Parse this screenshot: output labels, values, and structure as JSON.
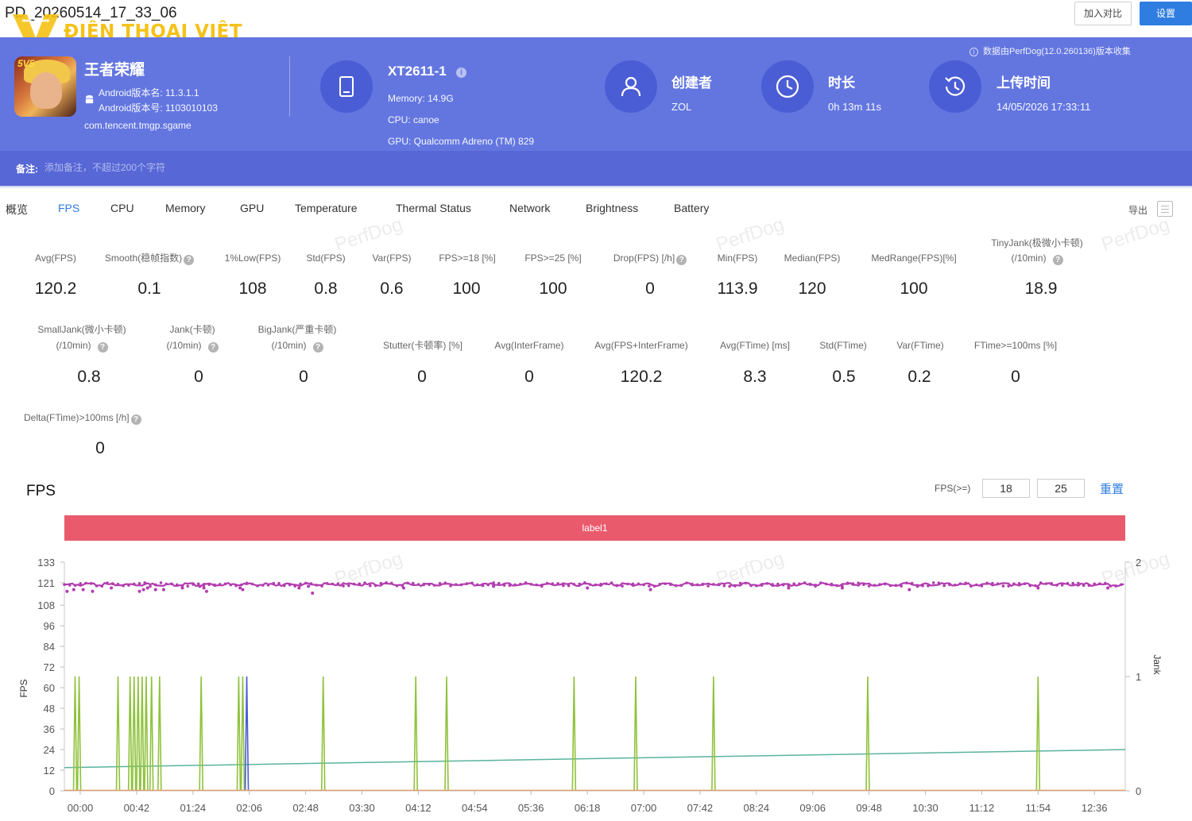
{
  "window": {
    "file_title": "PD_20260514_17_33_06",
    "watermark_text": "ĐIỆN THOẠI VIỆT",
    "compare_button": "加入对比",
    "settings_button": "设置"
  },
  "header": {
    "app_name": "王者荣耀",
    "android_version": "Android版本名: 11.3.1.1",
    "android_build": "Android版本号: 1103010103",
    "package": "com.tencent.tmgp.sgame",
    "device_name": "XT2611-1",
    "memory": "Memory: 14.9G",
    "cpu": "CPU: canoe",
    "gpu": "GPU: Qualcomm Adreno (TM) 829",
    "creator_label": "创建者",
    "creator_value": "ZOL",
    "duration_label": "时长",
    "duration_value": "0h 13m 11s",
    "upload_label": "上传时间",
    "upload_value": "14/05/2026 17:33:11",
    "collected_note": "数据由PerfDog(12.0.260136)版本收集",
    "remark_label": "备注:",
    "remark_placeholder": "添加备注，不超过200个字符",
    "bg_color": "#6376e0",
    "remark_bg_color": "#5767d6"
  },
  "tabs": {
    "items": [
      "概览",
      "FPS",
      "CPU",
      "Memory",
      "GPU",
      "Temperature",
      "Thermal Status",
      "Network",
      "Brightness",
      "Battery"
    ],
    "active": "FPS",
    "export_label": "导出",
    "accent_color": "#2f7de1"
  },
  "stats": {
    "row1": [
      {
        "label": "Avg(FPS)",
        "value": "120.2"
      },
      {
        "label": "Smooth(稳帧指数)",
        "value": "0.1"
      },
      {
        "label": "1%Low(FPS)",
        "value": "108"
      },
      {
        "label": "Std(FPS)",
        "value": "0.8"
      },
      {
        "label": "Var(FPS)",
        "value": "0.6"
      },
      {
        "label": "FPS>=18 [%]",
        "value": "100"
      },
      {
        "label": "FPS>=25 [%]",
        "value": "100"
      },
      {
        "label": "Drop(FPS) [/h]",
        "value": "0"
      },
      {
        "label": "Min(FPS)",
        "value": "113.9"
      },
      {
        "label": "Median(FPS)",
        "value": "120"
      },
      {
        "label": "MedRange(FPS)[%]",
        "value": "100"
      },
      {
        "label": "TinyJank(极微小卡顿)",
        "label2": "(/10min)",
        "value": "18.9"
      }
    ],
    "row2": [
      {
        "label": "SmallJank(微小卡顿)",
        "label2": "(/10min)",
        "value": "0.8"
      },
      {
        "label": "Jank(卡顿)",
        "label2": "(/10min)",
        "value": "0"
      },
      {
        "label": "BigJank(严重卡顿)",
        "label2": "(/10min)",
        "value": "0"
      },
      {
        "label": "Stutter(卡顿率) [%]",
        "value": "0"
      },
      {
        "label": "Avg(InterFrame)",
        "value": "0"
      },
      {
        "label": "Avg(FPS+InterFrame)",
        "value": "120.2"
      },
      {
        "label": "Avg(FTime) [ms]",
        "value": "8.3"
      },
      {
        "label": "Std(FTime)",
        "value": "0.5"
      },
      {
        "label": "Var(FTime)",
        "value": "0.2"
      },
      {
        "label": "FTime>=100ms [%]",
        "value": "0"
      }
    ],
    "row3": [
      {
        "label": "Delta(FTime)>100ms [/h]",
        "value": "0"
      }
    ]
  },
  "fps_panel": {
    "title": "FPS",
    "threshold_label": "FPS(>=)",
    "threshold_1": "18",
    "threshold_2": "25",
    "reset_label": "重置",
    "label_bar_text": "label1",
    "label_bar_color": "#e95a6c",
    "watermark": "PerfDog"
  },
  "chart_data": {
    "type": "line",
    "ylabel": "FPS",
    "y2label": "Jank",
    "y_ticks": [
      0,
      12,
      24,
      36,
      48,
      60,
      72,
      84,
      96,
      108,
      121,
      133
    ],
    "ylim": [
      0,
      133
    ],
    "y2_ticks": [
      0,
      1,
      2
    ],
    "y2lim": [
      0,
      2
    ],
    "x_ticks": [
      "00:00",
      "00:42",
      "01:24",
      "02:06",
      "02:48",
      "03:30",
      "04:12",
      "04:54",
      "05:36",
      "06:18",
      "07:00",
      "07:42",
      "08:24",
      "09:06",
      "09:48",
      "10:30",
      "11:12",
      "11:54",
      "12:36"
    ],
    "x_range_seconds": [
      0,
      791
    ],
    "grid": false,
    "series": [
      {
        "style": "scatter-line",
        "color": "#b23db0",
        "axis": "left",
        "x": [
          0,
          40,
          80,
          120,
          160,
          200,
          240,
          280,
          320,
          360,
          400,
          440,
          480,
          520,
          560,
          600,
          640,
          680,
          720,
          760,
          791
        ],
        "values": [
          120,
          120,
          120,
          120,
          120,
          120,
          120,
          120,
          120,
          120,
          120,
          120,
          120,
          120,
          120,
          120,
          120,
          120,
          120,
          120,
          120
        ],
        "dips": [
          [
            2,
            116
          ],
          [
            7,
            117
          ],
          [
            14,
            117
          ],
          [
            21,
            116
          ],
          [
            35,
            118
          ],
          [
            56,
            116
          ],
          [
            59,
            117
          ],
          [
            62,
            118
          ],
          [
            68,
            117
          ],
          [
            74,
            117
          ],
          [
            88,
            118
          ],
          [
            101,
            119
          ],
          [
            104,
            118
          ],
          [
            106,
            116
          ],
          [
            131,
            118
          ],
          [
            133,
            117
          ],
          [
            175,
            118
          ],
          [
            182,
            119
          ],
          [
            185,
            115
          ],
          [
            253,
            118
          ],
          [
            320,
            119
          ],
          [
            390,
            118
          ],
          [
            437,
            117
          ],
          [
            540,
            118
          ],
          [
            580,
            118
          ],
          [
            630,
            117
          ],
          [
            726,
            118
          ],
          [
            778,
            118
          ]
        ]
      },
      {
        "style": "line",
        "color": "#5ab39e",
        "axis": "left",
        "x": [
          0,
          791
        ],
        "values": [
          13.5,
          24
        ]
      },
      {
        "style": "spikes",
        "color": "#8fc23c",
        "axis": "right",
        "x": [
          8,
          11,
          40,
          49,
          52,
          55,
          58,
          61,
          65,
          71,
          102,
          130,
          133,
          193,
          262,
          285,
          380,
          426,
          484,
          599,
          726
        ],
        "values": [
          1,
          1,
          1,
          1,
          1,
          1,
          1,
          1,
          1,
          1,
          1,
          1,
          1,
          1,
          1,
          1,
          1,
          1,
          1,
          1,
          1
        ]
      },
      {
        "style": "spikes",
        "color": "#4a5bd4",
        "axis": "right",
        "x": [
          136
        ],
        "values": [
          1
        ]
      },
      {
        "style": "line",
        "color": "#e0a070",
        "axis": "left",
        "x": [
          0,
          791
        ],
        "values": [
          0.3,
          0.3
        ]
      }
    ]
  }
}
